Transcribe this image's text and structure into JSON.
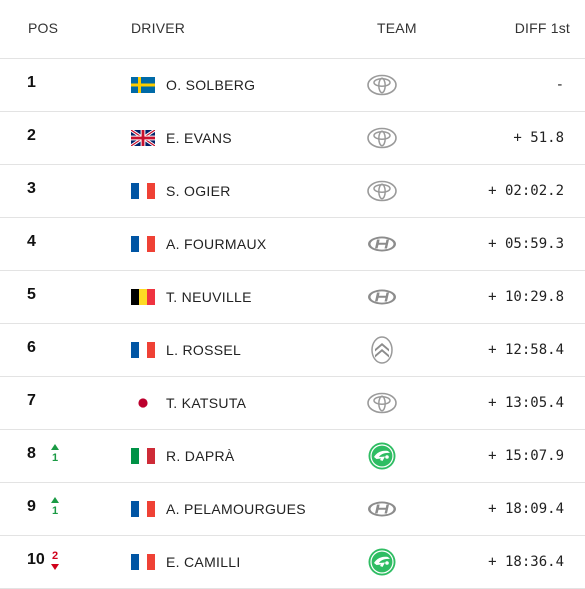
{
  "headers": {
    "pos": "POS",
    "driver": "DRIVER",
    "team": "TEAM",
    "diff": "DIFF 1st"
  },
  "colors": {
    "up": "#1a9a44",
    "down": "#d0021b",
    "skoda": "#2fbd63"
  },
  "rows": [
    {
      "pos": "1",
      "change": "",
      "direction": "",
      "flag": "sweden-flag",
      "driver": "O. SOLBERG",
      "team_icon": "toyota-logo-icon",
      "diff": "-"
    },
    {
      "pos": "2",
      "change": "",
      "direction": "",
      "flag": "uk-flag",
      "driver": "E. EVANS",
      "team_icon": "toyota-logo-icon",
      "diff": "+ 51.8"
    },
    {
      "pos": "3",
      "change": "",
      "direction": "",
      "flag": "france-flag",
      "driver": "S. OGIER",
      "team_icon": "toyota-logo-icon",
      "diff": "+ 02:02.2"
    },
    {
      "pos": "4",
      "change": "",
      "direction": "",
      "flag": "france-flag",
      "driver": "A. FOURMAUX",
      "team_icon": "hyundai-logo-icon",
      "diff": "+ 05:59.3"
    },
    {
      "pos": "5",
      "change": "",
      "direction": "",
      "flag": "belgium-flag",
      "driver": "T. NEUVILLE",
      "team_icon": "hyundai-logo-icon",
      "diff": "+ 10:29.8"
    },
    {
      "pos": "6",
      "change": "",
      "direction": "",
      "flag": "france-flag",
      "driver": "L. ROSSEL",
      "team_icon": "citroen-logo-icon",
      "diff": "+ 12:58.4"
    },
    {
      "pos": "7",
      "change": "",
      "direction": "",
      "flag": "japan-flag",
      "driver": "T. KATSUTA",
      "team_icon": "toyota-logo-icon",
      "diff": "+ 13:05.4"
    },
    {
      "pos": "8",
      "change": "1",
      "direction": "up",
      "flag": "italy-flag",
      "driver": "R. DAPRÀ",
      "team_icon": "skoda-logo-icon",
      "diff": "+ 15:07.9"
    },
    {
      "pos": "9",
      "change": "1",
      "direction": "up",
      "flag": "france-flag",
      "driver": "A. PELAMOURGUES",
      "team_icon": "hyundai-logo-icon",
      "diff": "+ 18:09.4"
    },
    {
      "pos": "10",
      "change": "2",
      "direction": "down",
      "flag": "france-flag",
      "driver": "E. CAMILLI",
      "team_icon": "skoda-logo-icon",
      "diff": "+ 18:36.4"
    }
  ]
}
